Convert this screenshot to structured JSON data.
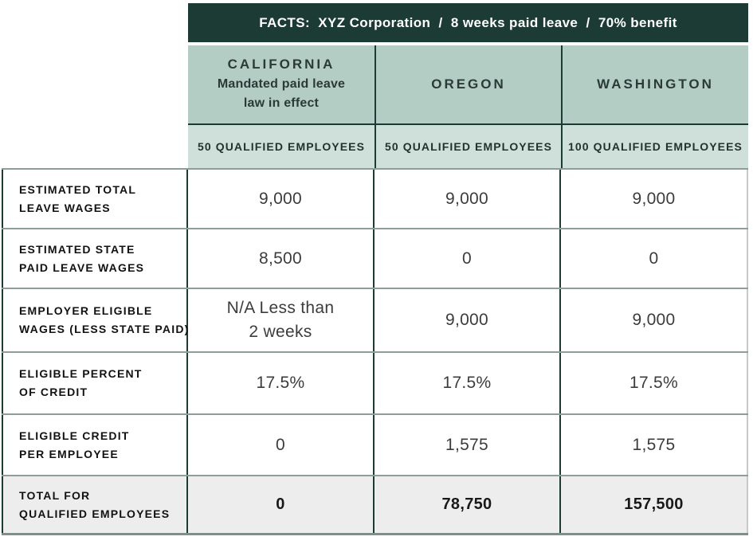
{
  "facts_bar": {
    "label": "FACTS:  XYZ Corporation  /  8 weeks paid leave  /  70% benefit"
  },
  "state_headers": [
    {
      "name": "CALIFORNIA",
      "subtitle_line1": "Mandated paid leave",
      "subtitle_line2": "law in effect"
    },
    {
      "name": "OREGON"
    },
    {
      "name": "WASHINGTON"
    }
  ],
  "qualified_row": [
    "50 QUALIFIED EMPLOYEES",
    "50 QUALIFIED EMPLOYEES",
    "100 QUALIFIED EMPLOYEES"
  ],
  "rows": [
    {
      "label_line1": "ESTIMATED TOTAL",
      "label_line2": "LEAVE WAGES",
      "values": [
        "9,000",
        "9,000",
        "9,000"
      ]
    },
    {
      "label_line1": "ESTIMATED STATE",
      "label_line2": "PAID LEAVE WAGES",
      "values": [
        "8,500",
        "0",
        "0"
      ]
    },
    {
      "label_line1": "EMPLOYER ELIGIBLE",
      "label_line2": "WAGES (LESS STATE PAID)",
      "values": [
        [
          "N/A Less than",
          "2 weeks"
        ],
        "9,000",
        "9,000"
      ]
    },
    {
      "label_line1": "ELIGIBLE PERCENT",
      "label_line2": "OF CREDIT",
      "values": [
        "17.5%",
        "17.5%",
        "17.5%"
      ]
    },
    {
      "label_line1": "ELIGIBLE CREDIT",
      "label_line2": "PER EMPLOYEE",
      "values": [
        "0",
        "1,575",
        "1,575"
      ]
    },
    {
      "label_line1": "TOTAL FOR",
      "label_line2": "QUALIFIED EMPLOYEES",
      "values": [
        "0",
        "78,750",
        "157,500"
      ]
    }
  ],
  "colors": {
    "header_bar": "#1c3b34",
    "state_header_bg": "#b3cdc5",
    "subheader_bg": "#cfdfd9",
    "total_row_bg": "#ededed",
    "row_border": "#8d9d97",
    "column_border": "#1c3b34",
    "value_text": "#3c3c3c"
  }
}
